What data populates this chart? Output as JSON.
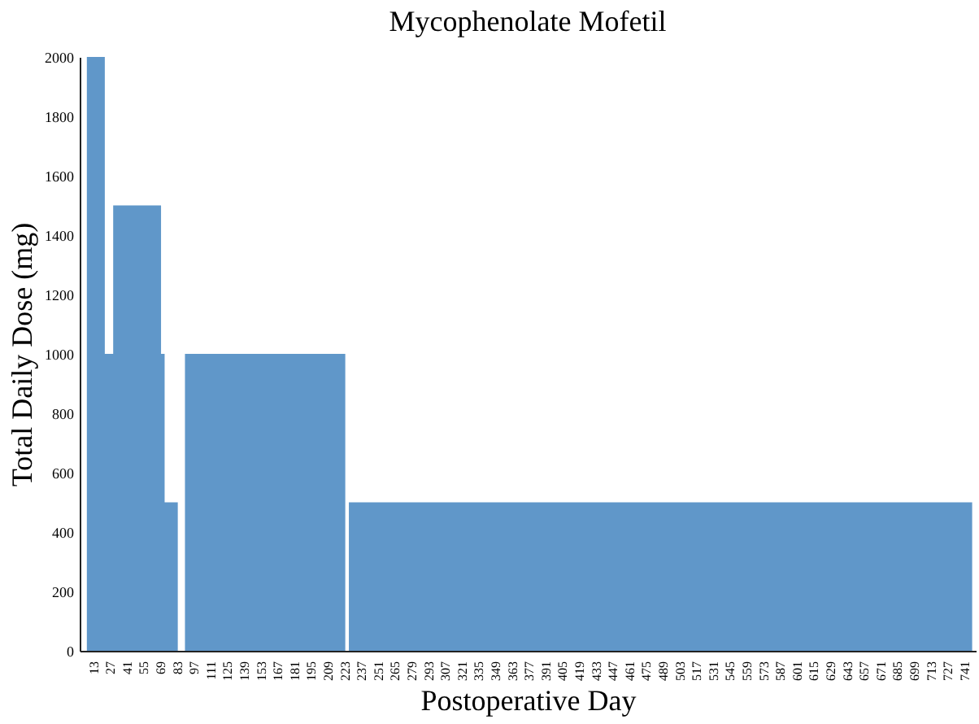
{
  "chart_data": {
    "type": "area",
    "title": "Mycophenolate Mofetil",
    "xlabel": "Postoperative Day",
    "ylabel": "Total Daily Dose (mg)",
    "x": [
      7,
      22,
      22,
      29,
      29,
      69,
      69,
      72,
      72,
      83,
      83,
      89,
      89,
      223,
      223,
      226,
      226,
      747
    ],
    "series": [
      {
        "color": "#6097c9",
        "values": [
          2000,
          2000,
          1000,
          1000,
          1500,
          1500,
          1000,
          1000,
          500,
          500,
          0,
          0,
          1000,
          1000,
          0,
          0,
          500,
          500
        ]
      }
    ],
    "xlim": [
      1,
      750
    ],
    "xticks": [
      13,
      27,
      41,
      55,
      69,
      83,
      97,
      111,
      125,
      139,
      153,
      167,
      181,
      195,
      209,
      223,
      237,
      251,
      265,
      279,
      293,
      307,
      321,
      335,
      349,
      363,
      377,
      391,
      405,
      419,
      433,
      447,
      461,
      475,
      489,
      503,
      517,
      531,
      545,
      559,
      573,
      587,
      601,
      615,
      629,
      643,
      657,
      671,
      685,
      699,
      713,
      727,
      741
    ],
    "ylim": [
      0,
      2000
    ],
    "yticks": [
      0,
      200,
      400,
      600,
      800,
      1000,
      1200,
      1400,
      1600,
      1800,
      2000
    ],
    "grid": false
  }
}
